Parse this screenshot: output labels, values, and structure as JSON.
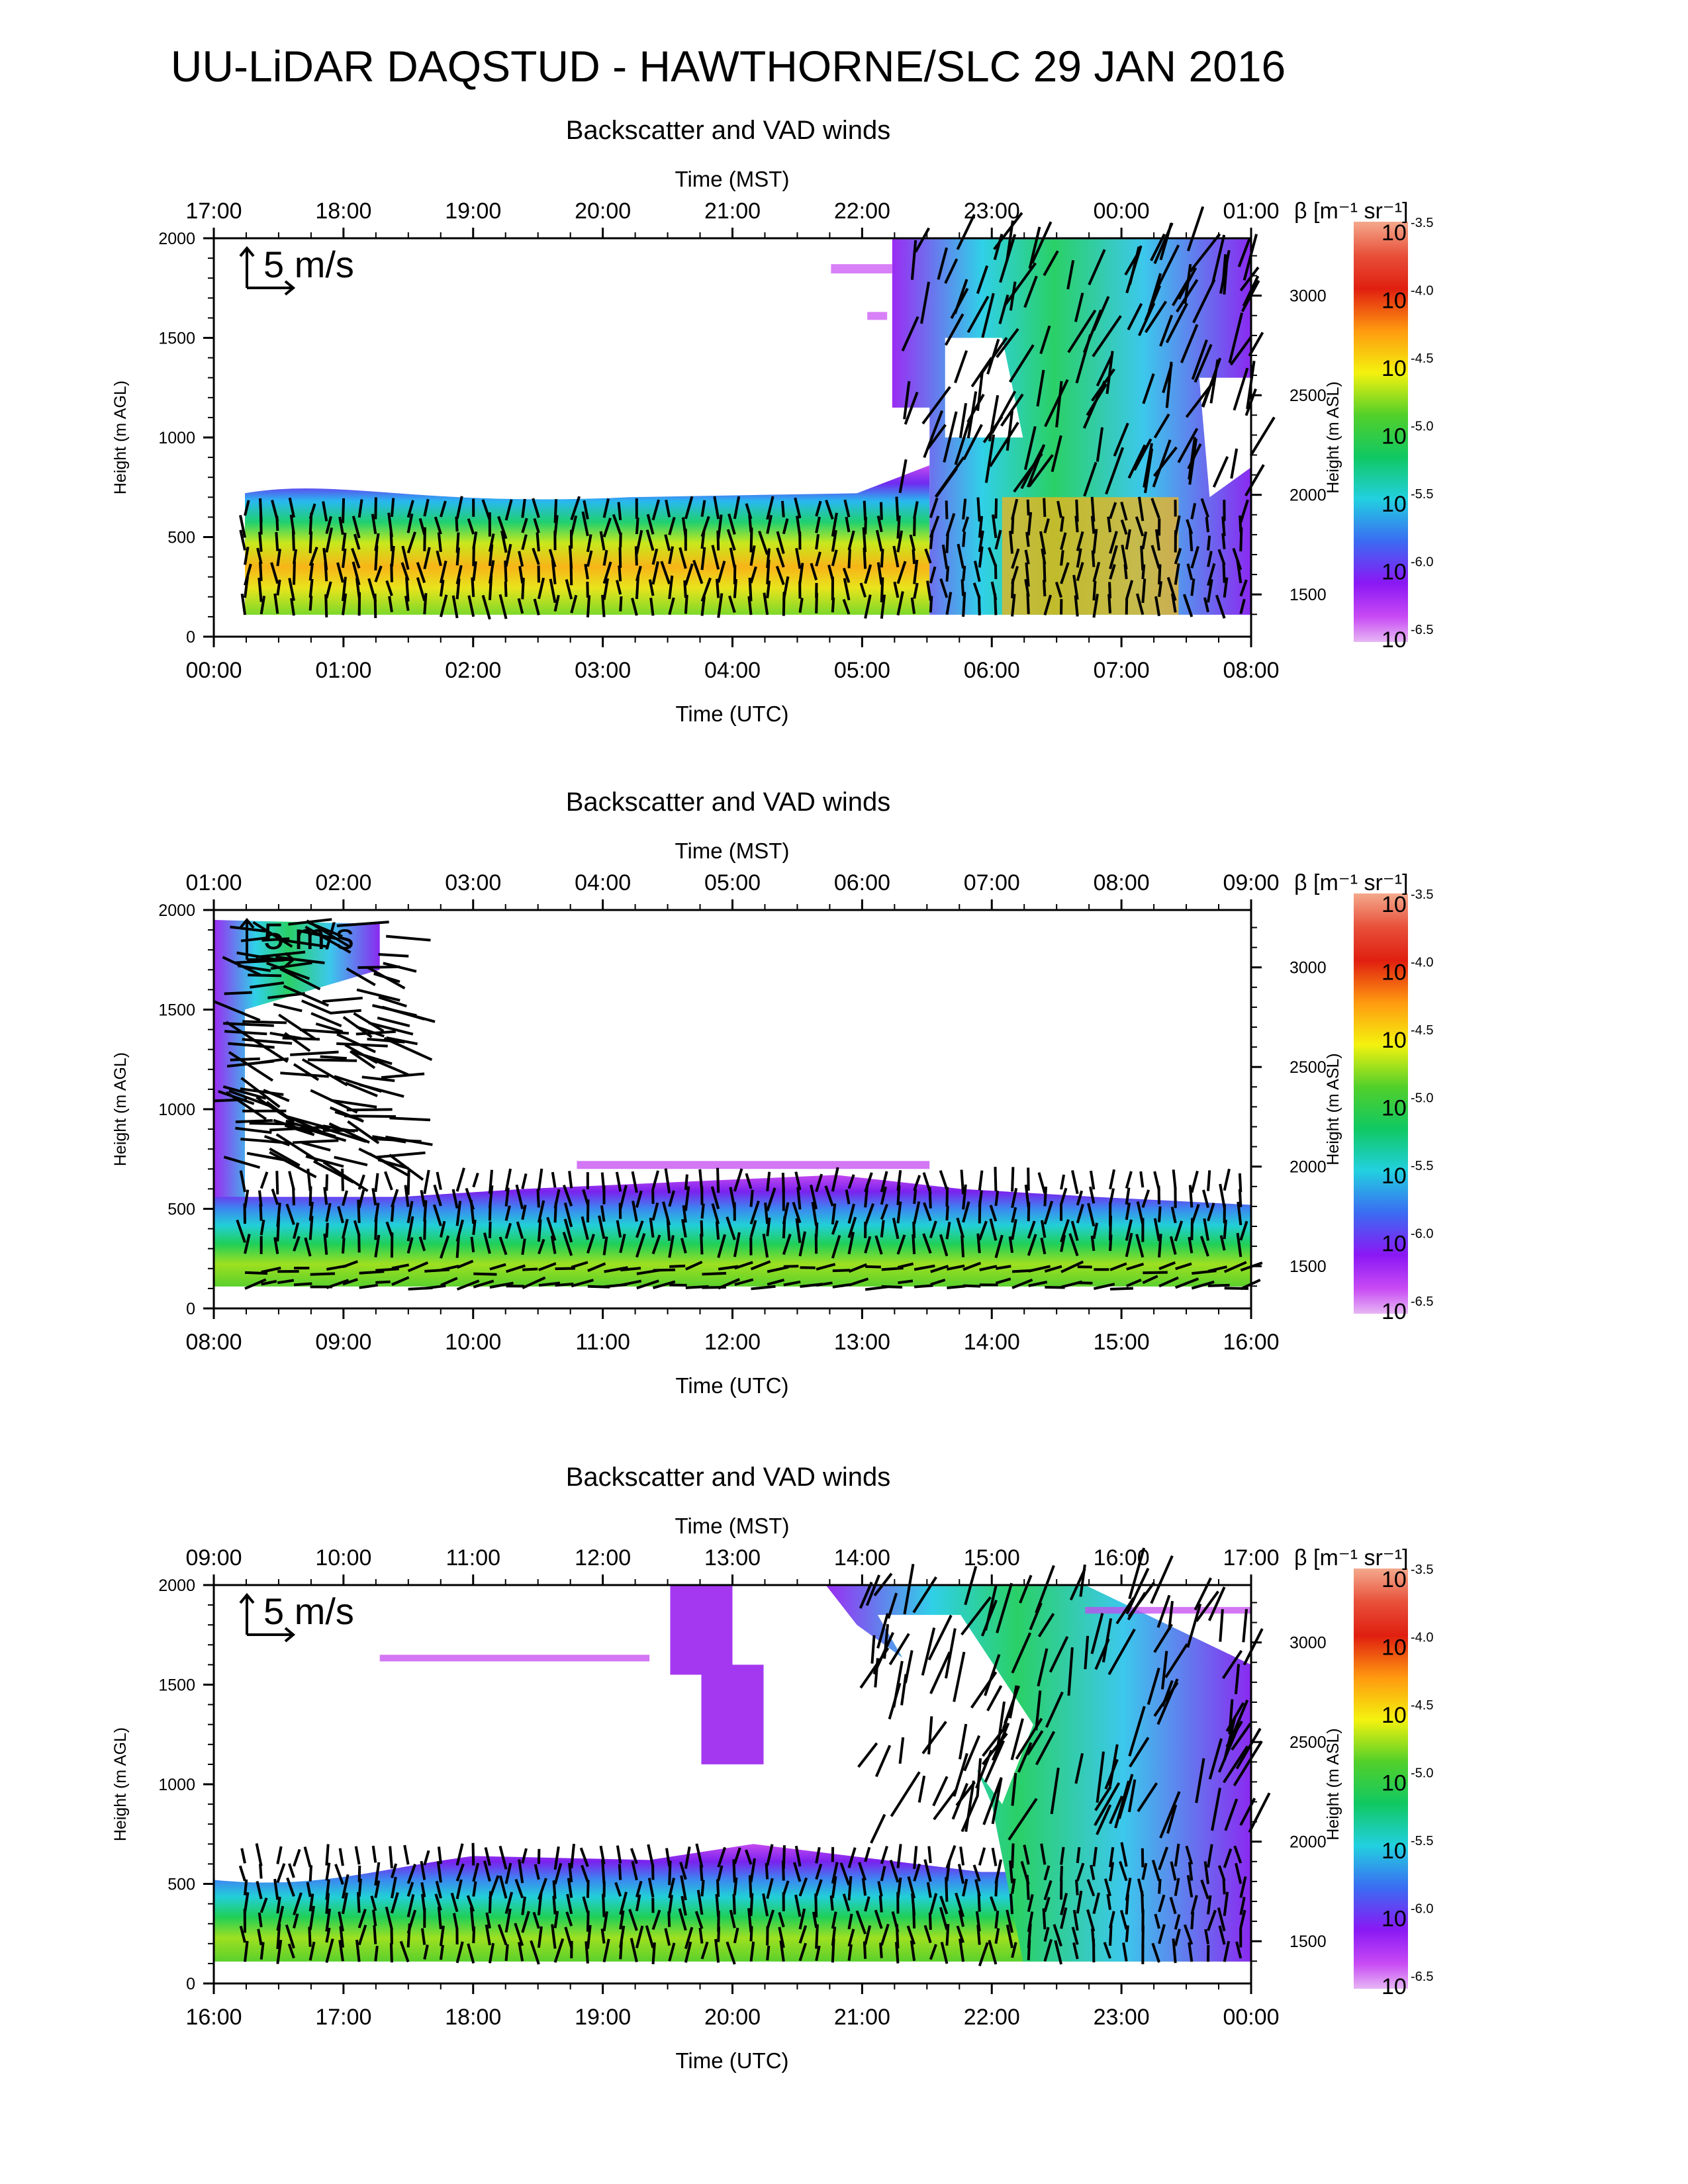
{
  "title": "UU-LiDAR DAQSTUD - HAWTHORNE/SLC 29 JAN 2016",
  "chart_data": [
    {
      "type": "heatmap",
      "title": "Backscatter and VAD winds",
      "xlabel_top": "Time (MST)",
      "xlabel_bottom": "Time (UTC)",
      "ylabel_left": "Height (m AGL)",
      "ylabel_right": "Height (m ASL)",
      "x_ticks_top": [
        "17:00",
        "18:00",
        "19:00",
        "20:00",
        "21:00",
        "22:00",
        "23:00",
        "00:00",
        "01:00"
      ],
      "x_ticks_bottom": [
        "00:00",
        "01:00",
        "02:00",
        "03:00",
        "04:00",
        "05:00",
        "06:00",
        "07:00",
        "08:00"
      ],
      "y_ticks_left": [
        "0",
        "500",
        "1000",
        "1500",
        "2000"
      ],
      "y_ticks_right": [
        "1500",
        "2000",
        "2500",
        "3000"
      ],
      "ylim_agl": [
        0,
        2000
      ],
      "colorbar_label": "β [m⁻¹ sr⁻¹]",
      "colorbar_ticks": [
        "-3.5",
        "-4.0",
        "-4.5",
        "-5.0",
        "-5.5",
        "-6.0",
        "-6.5"
      ],
      "vector_key": "5 m/s"
    },
    {
      "type": "heatmap",
      "title": "Backscatter and VAD winds",
      "xlabel_top": "Time (MST)",
      "xlabel_bottom": "Time (UTC)",
      "ylabel_left": "Height (m AGL)",
      "ylabel_right": "Height (m ASL)",
      "x_ticks_top": [
        "01:00",
        "02:00",
        "03:00",
        "04:00",
        "05:00",
        "06:00",
        "07:00",
        "08:00",
        "09:00"
      ],
      "x_ticks_bottom": [
        "08:00",
        "09:00",
        "10:00",
        "11:00",
        "12:00",
        "13:00",
        "14:00",
        "15:00",
        "16:00"
      ],
      "y_ticks_left": [
        "0",
        "500",
        "1000",
        "1500",
        "2000"
      ],
      "y_ticks_right": [
        "1500",
        "2000",
        "2500",
        "3000"
      ],
      "ylim_agl": [
        0,
        2000
      ],
      "colorbar_label": "β [m⁻¹ sr⁻¹]",
      "colorbar_ticks": [
        "-3.5",
        "-4.0",
        "-4.5",
        "-5.0",
        "-5.5",
        "-6.0",
        "-6.5"
      ],
      "vector_key": "5 m/s"
    },
    {
      "type": "heatmap",
      "title": "Backscatter and VAD winds",
      "xlabel_top": "Time (MST)",
      "xlabel_bottom": "Time (UTC)",
      "ylabel_left": "Height (m AGL)",
      "ylabel_right": "Height (m ASL)",
      "x_ticks_top": [
        "09:00",
        "10:00",
        "11:00",
        "12:00",
        "13:00",
        "14:00",
        "15:00",
        "16:00",
        "17:00"
      ],
      "x_ticks_bottom": [
        "16:00",
        "17:00",
        "18:00",
        "19:00",
        "20:00",
        "21:00",
        "22:00",
        "23:00",
        "00:00"
      ],
      "y_ticks_left": [
        "0",
        "500",
        "1000",
        "1500",
        "2000"
      ],
      "y_ticks_right": [
        "1500",
        "2000",
        "2500",
        "3000"
      ],
      "ylim_agl": [
        0,
        2000
      ],
      "colorbar_label": "β [m⁻¹ sr⁻¹]",
      "colorbar_ticks": [
        "-3.5",
        "-4.0",
        "-4.5",
        "-5.0",
        "-5.5",
        "-6.0",
        "-6.5"
      ],
      "vector_key": "5 m/s"
    }
  ]
}
